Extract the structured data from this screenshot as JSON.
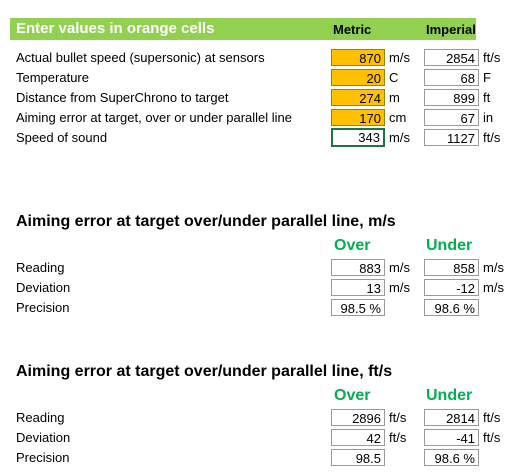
{
  "header": {
    "title": "Enter values in orange cells",
    "metric_label": "Metric",
    "imperial_label": "Imperial"
  },
  "inputs": [
    {
      "label": "Actual bullet speed (supersonic) at sensors",
      "metric_value": "870",
      "metric_unit": "m/s",
      "imperial_value": "2854",
      "imperial_unit": "ft/s"
    },
    {
      "label": "Temperature",
      "metric_value": "20",
      "metric_unit": "C",
      "imperial_value": "68",
      "imperial_unit": "F"
    },
    {
      "label": "Distance from SuperChrono to target",
      "metric_value": "274",
      "metric_unit": "m",
      "imperial_value": "899",
      "imperial_unit": "ft"
    },
    {
      "label": "Aiming error at target, over or under parallel line",
      "metric_value": "170",
      "metric_unit": "cm",
      "imperial_value": "67",
      "imperial_unit": "in"
    },
    {
      "label": "Speed of sound",
      "metric_value": "343",
      "metric_unit": "m/s",
      "imperial_value": "1127",
      "imperial_unit": "ft/s"
    }
  ],
  "section_ms": {
    "title": "Aiming error at target over/under parallel line, m/s",
    "over_label": "Over",
    "under_label": "Under",
    "rows": [
      {
        "label": "Reading",
        "over": "883",
        "over_unit": "m/s",
        "under": "858",
        "under_unit": "m/s"
      },
      {
        "label": "Deviation",
        "over": "13",
        "over_unit": "m/s",
        "under": "-12",
        "under_unit": "m/s"
      },
      {
        "label": "Precision",
        "over": "98.5 %",
        "over_unit": "",
        "under": "98.6 %",
        "under_unit": ""
      }
    ]
  },
  "section_fts": {
    "title": "Aiming error at target over/under parallel line, ft/s",
    "over_label": "Over",
    "under_label": "Under",
    "rows": [
      {
        "label": "Reading",
        "over": "2896",
        "over_unit": "ft/s",
        "under": "2814",
        "under_unit": "ft/s"
      },
      {
        "label": "Deviation",
        "over": "42",
        "over_unit": "ft/s",
        "under": "-41",
        "under_unit": "ft/s"
      },
      {
        "label": "Precision",
        "over": "98.5",
        "over_unit": "",
        "under": "98.6 %",
        "under_unit": ""
      }
    ]
  },
  "colors": {
    "header_green": "#92d050",
    "input_orange": "#ffc000",
    "heading_green": "#00b050",
    "selection_border": "#217346"
  }
}
